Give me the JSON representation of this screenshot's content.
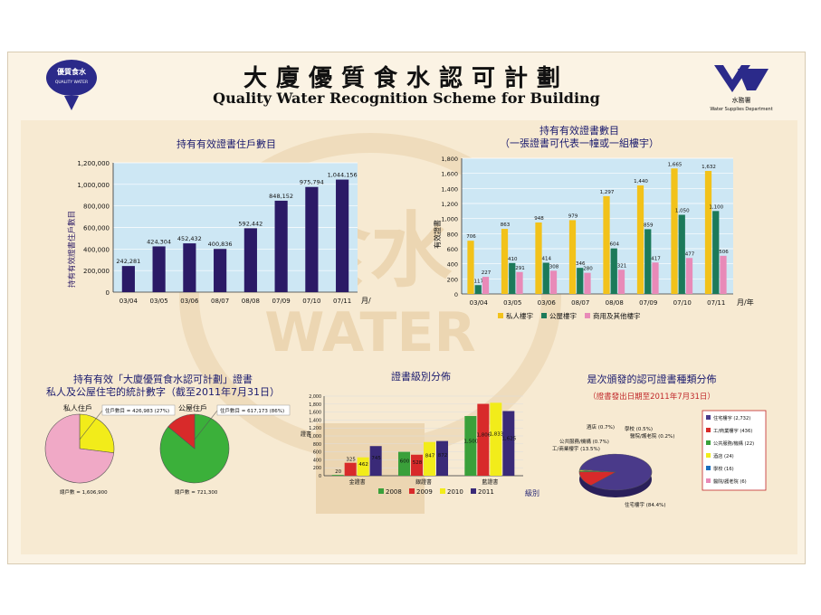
{
  "header": {
    "title_zh": "大廈優質食水認可計劃",
    "title_en": "Quality Water Recognition Scheme for Building",
    "logo_left_text1": "優質食水",
    "logo_left_text2": "QUALITY WATER",
    "logo_right_text1": "水務署",
    "logo_right_text2": "Water Supplies Department"
  },
  "chart1": {
    "title": "持有有效證書住戶數目",
    "ylabel": "持有有效證書住戶數目",
    "x_unit": "月/年",
    "chart_data": {
      "type": "bar",
      "categories": [
        "03/04",
        "03/05",
        "03/06",
        "08/07",
        "08/08",
        "07/09",
        "07/10",
        "07/11"
      ],
      "values": [
        242281,
        424304,
        452432,
        400836,
        592442,
        848152,
        975794,
        1044156
      ],
      "value_labels": [
        "242,281",
        "424,304",
        "452,432",
        "400,836",
        "592,442",
        "848,152",
        "975,794",
        "1,044,156"
      ],
      "yticks": [
        "0",
        "200,000",
        "400,000",
        "600,000",
        "800,000",
        "1,000,000",
        "1,200,000"
      ],
      "ylim": [
        0,
        1200000
      ],
      "color": "#2b1a66"
    }
  },
  "chart2": {
    "title_line1": "持有有效證書數目",
    "title_line2": "（一張證書可代表一幢或一組樓宇）",
    "ylabel": "有效證書",
    "x_unit": "月/年",
    "chart_data": {
      "type": "bar",
      "categories": [
        "03/04",
        "03/05",
        "03/06",
        "08/07",
        "08/08",
        "07/09",
        "07/10",
        "07/11"
      ],
      "series": [
        {
          "name": "私人樓宇",
          "color": "#f2c21a",
          "values": [
            706,
            863,
            948,
            979,
            1297,
            1440,
            1665,
            1632
          ]
        },
        {
          "name": "公屋樓宇",
          "color": "#1c7a5a",
          "values": [
            117,
            410,
            414,
            346,
            604,
            859,
            1050,
            1100
          ]
        },
        {
          "name": "商用及其他樓宇",
          "color": "#e88ab8",
          "values": [
            227,
            291,
            308,
            280,
            321,
            417,
            477,
            506
          ]
        }
      ],
      "yticks": [
        "0",
        "200",
        "400",
        "600",
        "800",
        "1,000",
        "1,200",
        "1,400",
        "1,600",
        "1,800"
      ],
      "ylim": [
        0,
        1800
      ]
    }
  },
  "chart3": {
    "title_line1": "持有有效「大廈優質食水認可計劃」證書",
    "title_line2": "私人及公屋住宅的統計數字（截至2011年7月31日）",
    "chart_data": [
      {
        "type": "pie",
        "label": "私人住戶",
        "slices": [
          {
            "name": "住戶數目",
            "value": 27,
            "color": "#f2ec1a"
          },
          {
            "name": "",
            "value": 73,
            "color": "#f0a9c6"
          }
        ],
        "callout": "住戶數目 = 426,983 (27%)",
        "total": "總戶數 = 1,606,900"
      },
      {
        "type": "pie",
        "label": "公屋住戶",
        "slices": [
          {
            "name": "住戶數目",
            "value": 86,
            "color": "#3bb03a"
          },
          {
            "name": "",
            "value": 14,
            "color": "#d82a2a"
          }
        ],
        "callout": "住戶數目 = 617,173 (86%)",
        "total": "總戶數 = 721,300"
      }
    ]
  },
  "chart4": {
    "title": "證書級別分佈",
    "ylabel": "證書",
    "x_unit": "級別",
    "chart_data": {
      "type": "bar",
      "categories": [
        "金證書",
        "銀證書",
        "藍證書"
      ],
      "series": [
        {
          "name": "2008",
          "color": "#3aa03a",
          "values": [
            20,
            600,
            1500
          ]
        },
        {
          "name": "2009",
          "color": "#d82a2a",
          "values": [
            325,
            528,
            1806
          ]
        },
        {
          "name": "2010",
          "color": "#f2ec1a",
          "values": [
            462,
            847,
            1833
          ]
        },
        {
          "name": "2011",
          "color": "#3a2a78",
          "values": [
            745,
            872,
            1625
          ]
        }
      ],
      "value_labels": [
        [
          "20",
          "325",
          "462",
          "745"
        ],
        [
          "600",
          "528",
          "847",
          "872"
        ],
        [
          "1,500",
          "1,806",
          "1,833",
          "1,625"
        ]
      ],
      "yticks": [
        "0",
        "200",
        "400",
        "600",
        "800",
        "1,000",
        "1,200",
        "1,400",
        "1,600",
        "1,800",
        "2,000"
      ],
      "ylim": [
        0,
        2000
      ]
    }
  },
  "chart5": {
    "title": "是次頒發的認可證書種類分佈",
    "subtitle": "（證書發出日期至2011年7月31日）",
    "chart_data": {
      "type": "pie",
      "slices": [
        {
          "name": "住宅樓宇",
          "value": 84.4,
          "color": "#4a3a8a",
          "label": "住宅樓宇 (84.4%)"
        },
        {
          "name": "工/商業樓宇",
          "value": 13.5,
          "color": "#d82a2a",
          "label": "工/商業樓宇 (13.5%)"
        },
        {
          "name": "公共服務/機構",
          "value": 0.7,
          "color": "#3aa03a",
          "label": "公共服務/機構 (0.7%)"
        },
        {
          "name": "酒店",
          "value": 0.7,
          "color": "#f2ec1a",
          "label": "酒店 (0.7%)"
        },
        {
          "name": "學校",
          "value": 0.5,
          "color": "#1a6fbf",
          "label": "學校 (0.5%)"
        },
        {
          "name": "醫院/護老院",
          "value": 0.2,
          "color": "#e88ab8",
          "label": "醫院/護老院 (0.2%)"
        }
      ],
      "legend": [
        {
          "text": "住宅樓宇 (2,732)",
          "color": "#4a3a8a"
        },
        {
          "text": "工/商業樓宇 (436)",
          "color": "#d82a2a"
        },
        {
          "text": "公共服務/機構 (22)",
          "color": "#3aa03a"
        },
        {
          "text": "酒店 (24)",
          "color": "#f2ec1a"
        },
        {
          "text": "學校 (16)",
          "color": "#1a6fbf"
        },
        {
          "text": "醫院/護老院 (6)",
          "color": "#e88ab8"
        }
      ]
    }
  }
}
